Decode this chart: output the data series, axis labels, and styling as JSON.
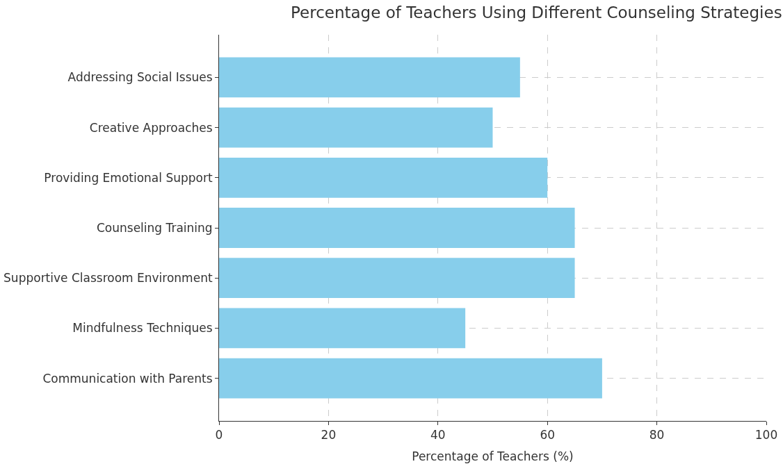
{
  "chart_data": {
    "type": "bar",
    "orientation": "horizontal",
    "title": "Percentage of Teachers Using Different Counseling Strategies",
    "xlabel": "Percentage of Teachers (%)",
    "categories": [
      "Addressing Social Issues",
      "Creative Approaches",
      "Providing Emotional Support",
      "Counseling Training",
      "Supportive Classroom Environment",
      "Mindfulness Techniques",
      "Communication with Parents"
    ],
    "values": [
      55,
      50,
      60,
      65,
      65,
      45,
      70
    ],
    "color": "#87ceeb",
    "xlim": [
      0,
      100
    ],
    "xticks": [
      0,
      20,
      40,
      60,
      80,
      100
    ],
    "grid": true
  }
}
